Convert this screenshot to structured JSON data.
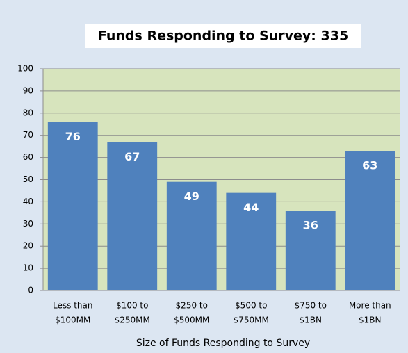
{
  "chart_data": {
    "type": "bar",
    "title": "Funds Responding to Survey:  335",
    "x_label": "Size of Funds Responding to Survey",
    "categories": [
      [
        "Less than",
        "$100MM"
      ],
      [
        "$100 to",
        "$250MM"
      ],
      [
        "$250 to",
        "$500MM"
      ],
      [
        "$500 to",
        "$750MM"
      ],
      [
        "$750 to",
        "$1BN"
      ],
      [
        "More than",
        "$1BN"
      ]
    ],
    "values": [
      76,
      67,
      49,
      44,
      36,
      63
    ],
    "color": "#4f81bd",
    "ylim": [
      0,
      100
    ],
    "yticks": [
      0,
      10,
      20,
      30,
      40,
      50,
      60,
      70,
      80,
      90,
      100
    ],
    "grid": true
  }
}
